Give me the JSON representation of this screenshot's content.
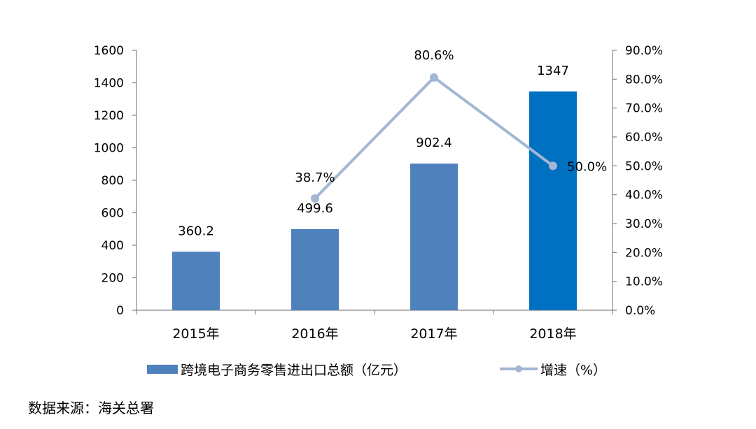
{
  "chart_data": {
    "type": "bar+line",
    "categories": [
      "2015年",
      "2016年",
      "2017年",
      "2018年"
    ],
    "bar_series": {
      "name": "跨境电子商务零售进出口总额（亿元）",
      "values": [
        360.2,
        499.6,
        902.4,
        1347
      ],
      "value_labels": [
        "360.2",
        "499.6",
        "902.4",
        "1347"
      ],
      "colors": [
        "#4f81bd",
        "#4f81bd",
        "#4f81bd",
        "#0070c0"
      ]
    },
    "line_series": {
      "name": "增速（%）",
      "values": [
        null,
        38.7,
        80.6,
        50.0
      ],
      "value_labels": [
        "",
        "38.7%",
        "80.6%",
        "50.0%"
      ],
      "color": "#a3b6d4"
    },
    "left_axis": {
      "min": 0,
      "max": 1600,
      "step": 200,
      "tick_labels": [
        "0",
        "200",
        "400",
        "600",
        "800",
        "1000",
        "1200",
        "1400",
        "1600"
      ]
    },
    "right_axis": {
      "min": 0,
      "max": 90,
      "step": 10,
      "tick_labels": [
        "0.0%",
        "10.0%",
        "20.0%",
        "30.0%",
        "40.0%",
        "50.0%",
        "60.0%",
        "70.0%",
        "80.0%",
        "90.0%"
      ]
    },
    "legend_position": "bottom",
    "grid": false
  },
  "source_text": "数据来源：海关总署"
}
